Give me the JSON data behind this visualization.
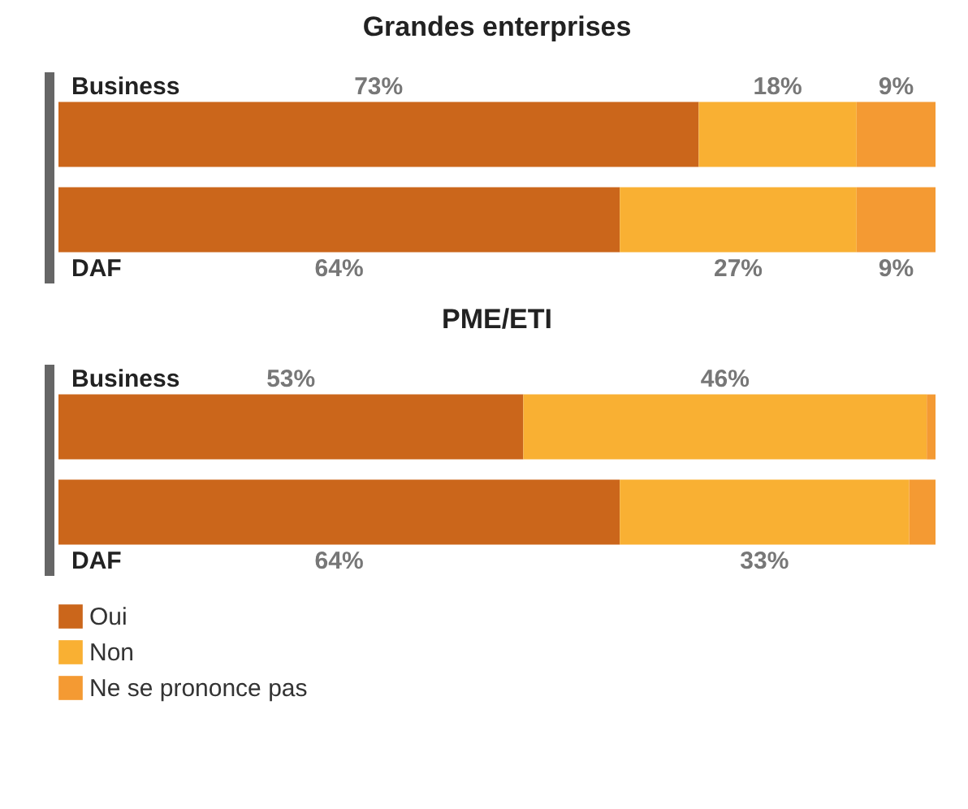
{
  "chart_data": [
    {
      "type": "bar",
      "orientation": "horizontal",
      "stacked": true,
      "title": "Grandes enterprises",
      "categories": [
        "Business",
        "DAF"
      ],
      "legend": false,
      "series": [
        {
          "color": "#cb661b",
          "values": [
            73,
            64
          ],
          "value_labels": [
            "73%",
            "64%"
          ]
        },
        {
          "color": "#f9b033",
          "values": [
            18,
            27
          ],
          "value_labels": [
            "18%",
            "27%"
          ]
        },
        {
          "color": "#f49a33",
          "values": [
            9,
            9
          ],
          "value_labels": [
            "9%",
            "9%"
          ]
        }
      ]
    },
    {
      "type": "bar",
      "orientation": "horizontal",
      "stacked": true,
      "title": "PME/ETI",
      "categories": [
        "Business",
        "DAF"
      ],
      "legend": "bottom left",
      "series": [
        {
          "name": "Oui",
          "color": "#cb661b",
          "values": [
            53,
            64
          ],
          "value_labels": [
            "53%",
            "64%"
          ]
        },
        {
          "name": "Non",
          "color": "#f9b033",
          "values": [
            46,
            33
          ],
          "value_labels": [
            "46%",
            "33%"
          ]
        },
        {
          "name": "Ne se prononce pas",
          "color": "#f49a33",
          "values": [
            1,
            3
          ],
          "value_labels": [
            null,
            null
          ]
        }
      ]
    }
  ]
}
